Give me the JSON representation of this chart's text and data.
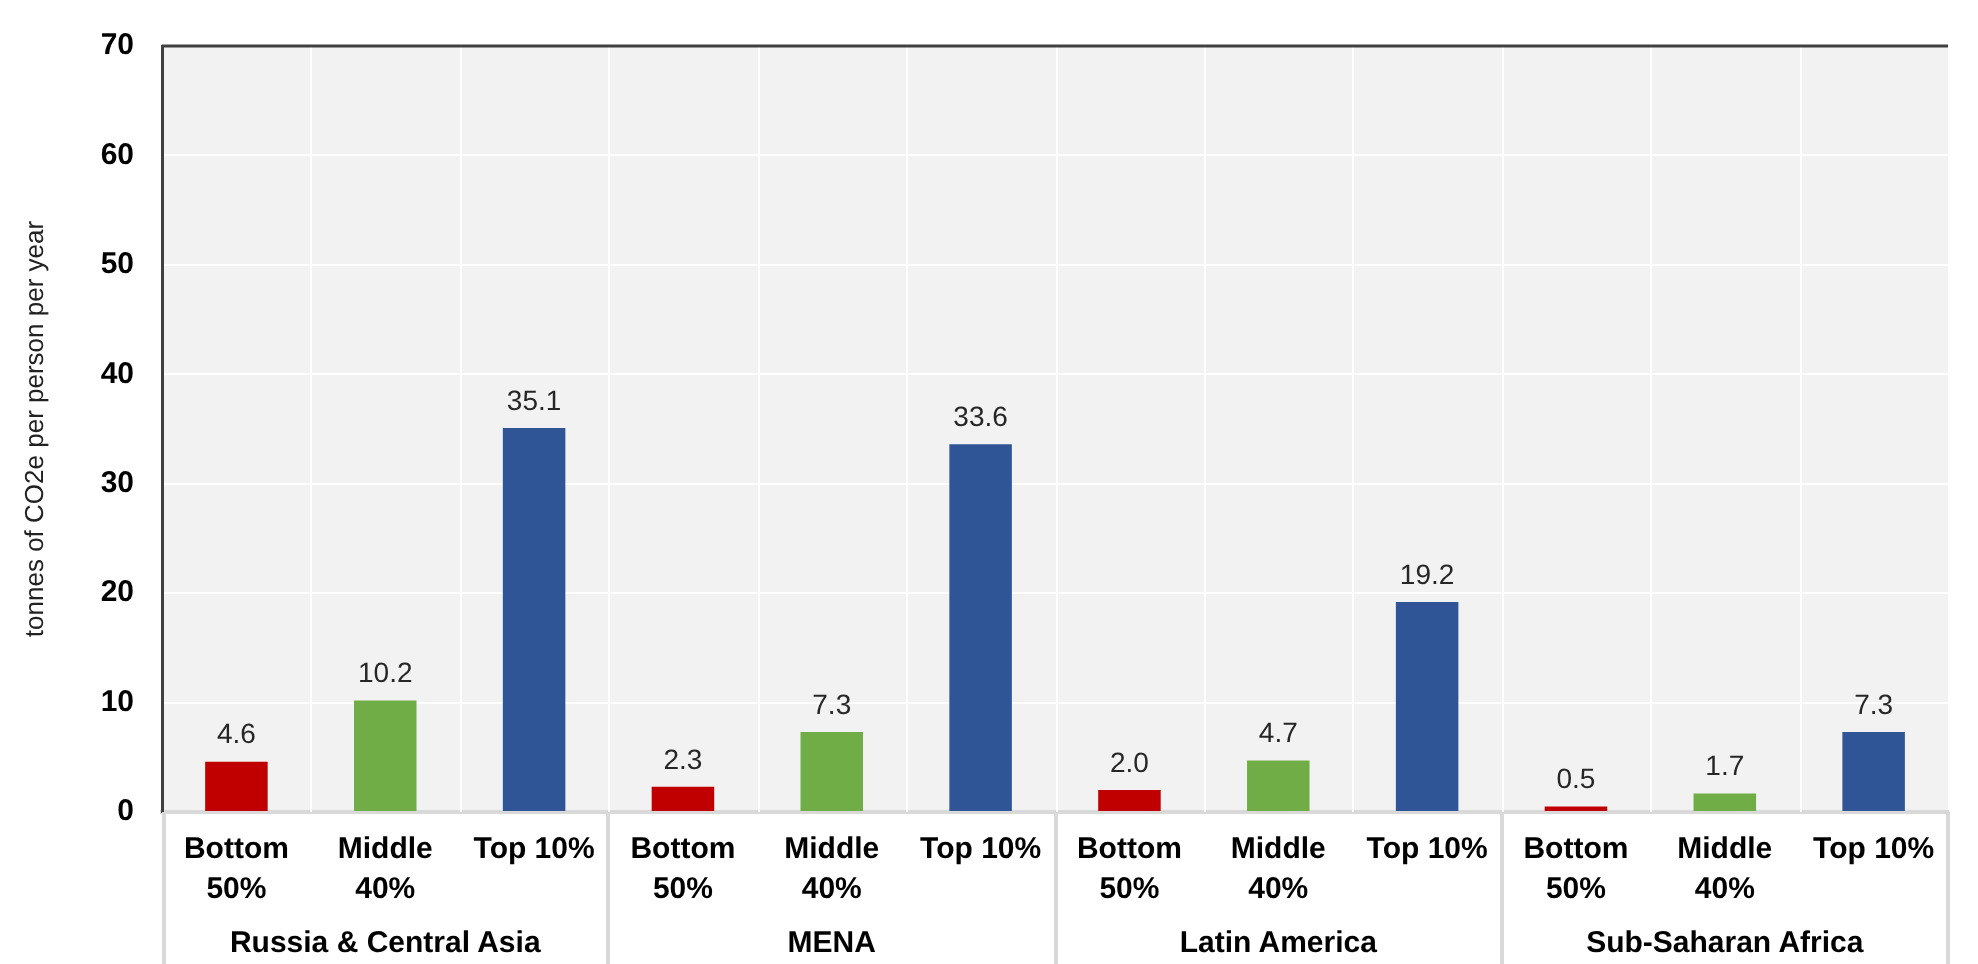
{
  "chart_data": {
    "type": "bar",
    "categories": [
      "Russia & Central Asia",
      "MENA",
      "Latin America",
      "Sub-Saharan Africa"
    ],
    "series": [
      {
        "name": "Bottom 50%",
        "color": "#c00000",
        "values": [
          4.6,
          2.3,
          2.0,
          0.5
        ],
        "value_labels": [
          "4.6",
          "2.3",
          "2.0",
          "0.5"
        ]
      },
      {
        "name": "Middle 40%",
        "color": "#70ad47",
        "values": [
          10.2,
          7.3,
          4.7,
          1.7
        ],
        "value_labels": [
          "10.2",
          "7.3",
          "4.7",
          "1.7"
        ]
      },
      {
        "name": "Top 10%",
        "color": "#2f5597",
        "values": [
          35.1,
          33.6,
          19.2,
          7.3
        ],
        "value_labels": [
          "35.1",
          "33.6",
          "19.2",
          "7.3"
        ]
      }
    ],
    "ylabel": "tonnes of CO2e per person per year",
    "ylim": [
      0,
      70
    ],
    "yticks": [
      0,
      10,
      20,
      30,
      40,
      50,
      60,
      70
    ],
    "grid": true
  }
}
